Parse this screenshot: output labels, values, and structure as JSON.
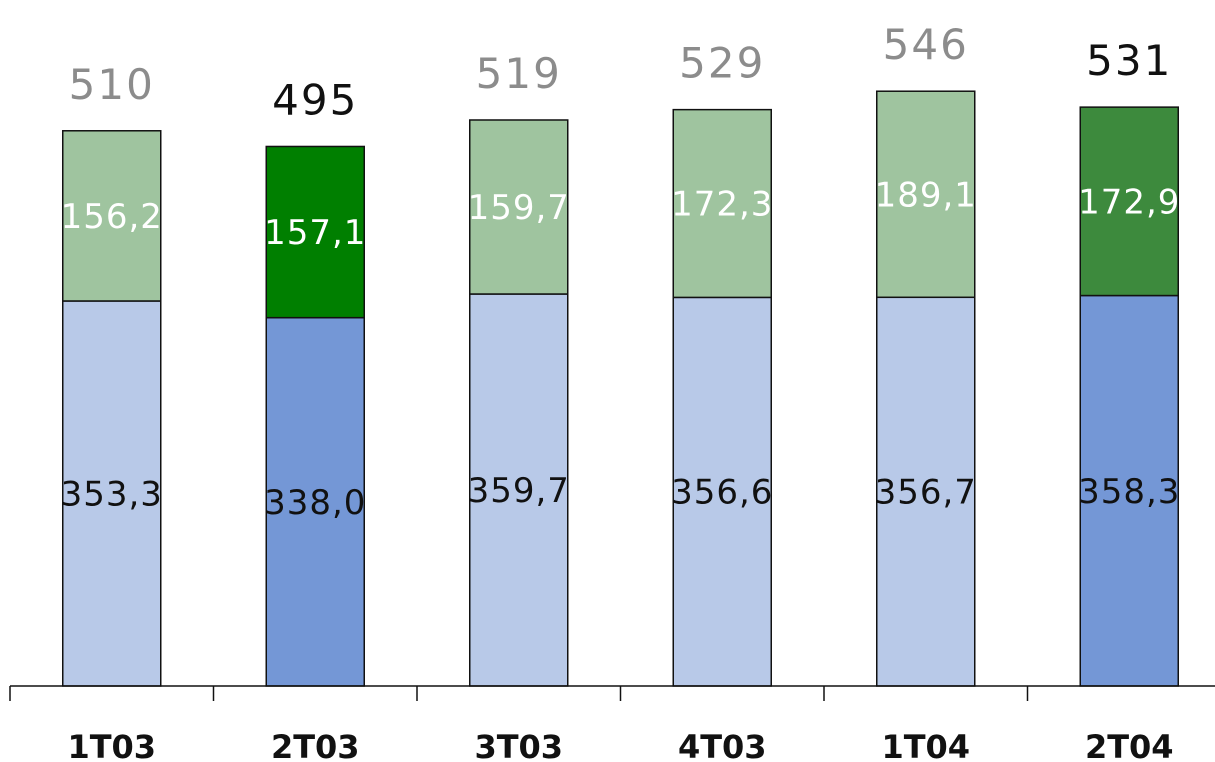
{
  "chart_data": {
    "type": "bar",
    "stacked": true,
    "title": "",
    "xlabel": "",
    "ylabel": "",
    "ylim": [
      0,
      546
    ],
    "grid": false,
    "legend": "none",
    "categories": [
      "1T03",
      "2T03",
      "3T03",
      "4T03",
      "1T04",
      "2T04"
    ],
    "highlighted_categories": [
      "2T03",
      "2T04"
    ],
    "totals": [
      "510",
      "495",
      "519",
      "529",
      "546",
      "531"
    ],
    "series": [
      {
        "values": [
          353.3,
          338.0,
          359.7,
          356.6,
          356.7,
          358.3
        ],
        "labels": [
          "353,3",
          "338,0",
          "359,7",
          "356,6",
          "356,7",
          "358,3"
        ]
      },
      {
        "values": [
          156.2,
          157.1,
          159.7,
          172.3,
          189.1,
          172.9
        ],
        "labels": [
          "156,2",
          "157,1",
          "159,7",
          "172,3",
          "189,1",
          "172,9"
        ]
      }
    ],
    "colors": {
      "bottom_normal": "#b8c9e8",
      "bottom_highlight": "#7497d6",
      "top_normal": "#9fc49f",
      "top_highlight_2T03": "#007f00",
      "top_highlight_2T04": "#3d8a3d",
      "total_normal": "#8c8c8c",
      "total_highlight": "#111111",
      "top_label": "#ffffff",
      "bottom_label": "#111111"
    }
  }
}
